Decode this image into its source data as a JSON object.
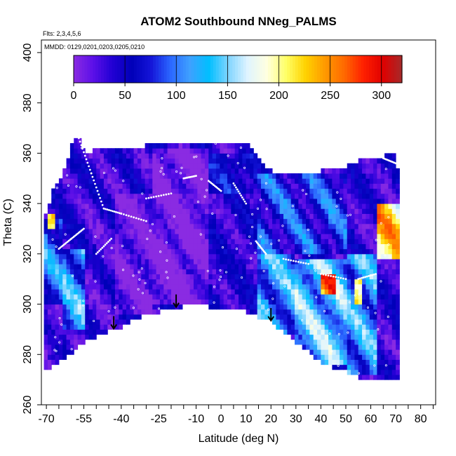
{
  "chart_data": {
    "type": "heatmap",
    "title": "ATOM2 Southbound NNeg_PALMS",
    "subtitle_flights": "Flts: 2,3,4,5,6",
    "subtitle_dates": "MMDD: 0129,0201,0203,0205,0210",
    "xlabel": "Latitude (deg N)",
    "ylabel": "Theta (C)",
    "xlim": [
      -72,
      86
    ],
    "ylim": [
      260,
      405
    ],
    "x_ticks": [
      -70,
      -65,
      -60,
      -55,
      -50,
      -45,
      -40,
      -35,
      -30,
      -25,
      -20,
      -15,
      -10,
      -5,
      0,
      5,
      10,
      15,
      20,
      25,
      30,
      35,
      40,
      45,
      50,
      55,
      60,
      65,
      70,
      75,
      80,
      85
    ],
    "x_tick_labels": [
      "-70",
      "",
      "",
      "-55",
      "",
      "",
      "-40",
      "",
      "",
      "-25",
      "",
      "",
      "-10",
      "",
      "0",
      "",
      "10",
      "",
      "20",
      "",
      "30",
      "",
      "40",
      "",
      "50",
      "",
      "60",
      "",
      "70",
      "",
      "80",
      ""
    ],
    "y_ticks": [
      260,
      280,
      300,
      320,
      340,
      360,
      380,
      400
    ],
    "colorbar": {
      "ticks": [
        0,
        50,
        100,
        150,
        200,
        250,
        300
      ],
      "range": [
        0,
        320
      ],
      "colors": [
        "#8a2be2",
        "#5c10e8",
        "#2200d4",
        "#0000b8",
        "#1414d8",
        "#2a66ff",
        "#3fa0ff",
        "#00bfff",
        "#7fd4ff",
        "#dff4ff",
        "#ffffe0",
        "#ffff66",
        "#ffd200",
        "#ff9a00",
        "#ff6a00",
        "#ff2000",
        "#e00000",
        "#a52a2a"
      ]
    },
    "surface_boundary": {
      "lat": [
        -70,
        -62,
        -55,
        -50,
        -45,
        -40,
        -35,
        -30,
        -25,
        -20,
        -15,
        -10,
        -5,
        0,
        5,
        10,
        15,
        20,
        25,
        30,
        35,
        40,
        45,
        50,
        55,
        60,
        65,
        70,
        71
      ],
      "theta": [
        274,
        280,
        286,
        288,
        290,
        292,
        295,
        297,
        298,
        299,
        300,
        301,
        300,
        299,
        299,
        298,
        296,
        294,
        290,
        286,
        282,
        278,
        276,
        274,
        272,
        271,
        270,
        270,
        272
      ]
    },
    "top_boundary": {
      "lat": [
        -70,
        -67,
        -63,
        -60,
        -57,
        -55,
        -52,
        -48,
        -45,
        -40,
        -30,
        -20,
        -10,
        0,
        10,
        20,
        30,
        40,
        50,
        55,
        60,
        65,
        68,
        70,
        71
      ],
      "theta": [
        336,
        345,
        352,
        362,
        366,
        360,
        360,
        361,
        361,
        362,
        362,
        363,
        364,
        364,
        363,
        352,
        351,
        352,
        354,
        356,
        357,
        358,
        359,
        359,
        350
      ]
    },
    "arrows_lat": [
      -43,
      -18,
      20
    ],
    "field": [
      {
        "lat_range": [
          -71,
          -64
        ],
        "theta_range": [
          300,
          334
        ],
        "value": 95
      },
      {
        "lat_range": [
          -71,
          -64
        ],
        "theta_range": [
          280,
          300
        ],
        "value": 25
      },
      {
        "lat_range": [
          -64,
          -55
        ],
        "theta_range": [
          322,
          360
        ],
        "value": 40
      },
      {
        "lat_range": [
          -64,
          -55
        ],
        "theta_range": [
          290,
          322
        ],
        "value": 110
      },
      {
        "lat_range": [
          -55,
          -42
        ],
        "theta_range": [
          290,
          340
        ],
        "value": 30
      },
      {
        "lat_range": [
          -42,
          -28
        ],
        "theta_range": [
          296,
          345
        ],
        "value": 10
      },
      {
        "lat_range": [
          -28,
          -5
        ],
        "theta_range": [
          300,
          362
        ],
        "value": 5
      },
      {
        "lat_range": [
          -5,
          15
        ],
        "theta_range": [
          298,
          345
        ],
        "value": 40
      },
      {
        "lat_range": [
          15,
          30
        ],
        "theta_range": [
          288,
          320
        ],
        "value": 110
      },
      {
        "lat_range": [
          30,
          50
        ],
        "theta_range": [
          276,
          318
        ],
        "value": 130
      },
      {
        "lat_range": [
          50,
          62
        ],
        "theta_range": [
          272,
          320
        ],
        "value": 110
      },
      {
        "lat_range": [
          62,
          71
        ],
        "theta_range": [
          318,
          340
        ],
        "value": 220
      },
      {
        "lat_range": [
          40,
          46
        ],
        "theta_range": [
          304,
          312
        ],
        "value": 250
      },
      {
        "lat_range": [
          -69,
          -66
        ],
        "theta_range": [
          330,
          336
        ],
        "value": 250
      },
      {
        "lat_range": [
          53,
          56
        ],
        "theta_range": [
          300,
          310
        ],
        "value": 240
      },
      {
        "lat_range": [
          -5,
          15
        ],
        "theta_range": [
          345,
          360
        ],
        "value": 60
      },
      {
        "lat_range": [
          15,
          50
        ],
        "theta_range": [
          320,
          352
        ],
        "value": 70
      }
    ]
  }
}
